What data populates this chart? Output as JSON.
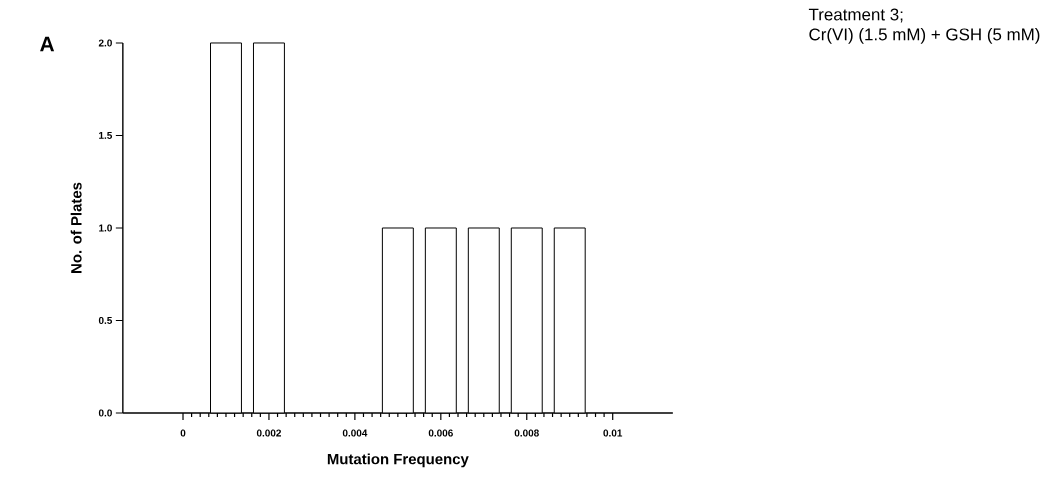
{
  "chart_data": {
    "type": "bar",
    "title": "Treatment 3;",
    "subtitle": "Cr(VI) (1.5 mM) + GSH (5 mM)",
    "xlabel": "Mutation Frequency",
    "ylabel": "No. of Plates",
    "annotations": [
      "A"
    ],
    "x": [
      0.001,
      0.002,
      0.005,
      0.006,
      0.007,
      0.008,
      0.009
    ],
    "values": [
      2,
      2,
      1,
      1,
      1,
      1,
      1
    ],
    "color": "#ffffff",
    "xlim": [
      -0.0014,
      0.0114
    ],
    "ylim": [
      0,
      2
    ],
    "xticks": [
      0,
      0.002,
      0.004,
      0.006,
      0.008,
      0.01
    ],
    "yticks": [
      {
        "value": 0,
        "label": "0.0"
      },
      {
        "value": 0.5,
        "label": "0.5"
      },
      {
        "value": 1,
        "label": "1.0"
      },
      {
        "value": 1.5,
        "label": "1.5"
      },
      {
        "value": 2,
        "label": "2.0"
      }
    ],
    "grid": false
  }
}
